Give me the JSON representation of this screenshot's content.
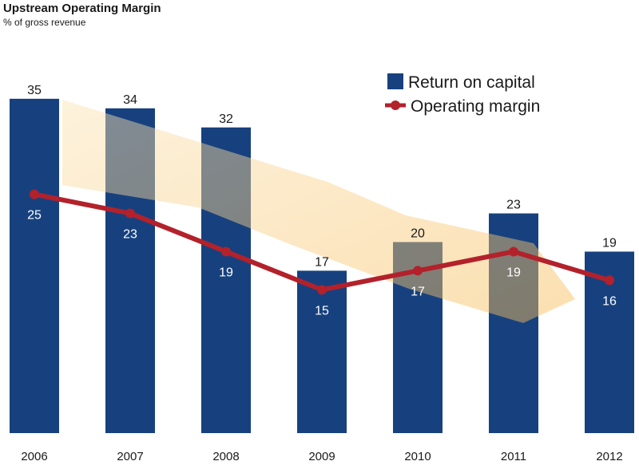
{
  "chart_data": {
    "type": "bar",
    "title": "Upstream Operating Margin",
    "subtitle": "% of gross revenue",
    "categories": [
      "2006",
      "2007",
      "2008",
      "2009",
      "2010",
      "2011",
      "2012"
    ],
    "series": [
      {
        "name": "Return on capital",
        "type": "bar",
        "color": "#17417e",
        "values": [
          35,
          34,
          32,
          17,
          20,
          23,
          19
        ]
      },
      {
        "name": "Operating margin",
        "type": "line",
        "color": "#b3212b",
        "values": [
          25,
          23,
          19,
          15,
          17,
          19,
          16
        ]
      }
    ],
    "ylim": [
      0,
      42
    ],
    "legend_position": "top-right",
    "grid": false,
    "trend_arrow_color": "#f7c56a"
  }
}
